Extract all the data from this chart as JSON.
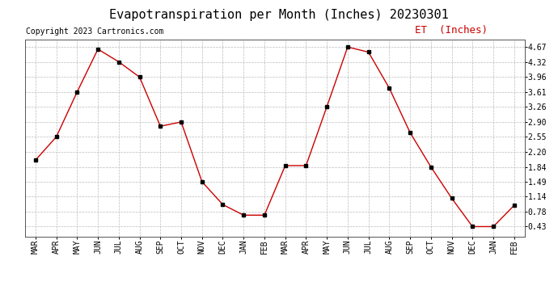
{
  "title": "Evapotranspiration per Month (Inches) 20230301",
  "copyright": "Copyright 2023 Cartronics.com",
  "legend_label": "ET  (Inches)",
  "months": [
    "MAR",
    "APR",
    "MAY",
    "JUN",
    "JUL",
    "AUG",
    "SEP",
    "OCT",
    "NOV",
    "DEC",
    "JAN",
    "FEB",
    "MAR",
    "APR",
    "MAY",
    "JUN",
    "JUL",
    "AUG",
    "SEP",
    "OCT",
    "NOV",
    "DEC",
    "JAN",
    "FEB"
  ],
  "values": [
    2.0,
    2.55,
    3.61,
    4.62,
    4.32,
    3.96,
    2.8,
    2.9,
    1.49,
    0.95,
    0.7,
    0.7,
    1.87,
    1.87,
    3.26,
    4.67,
    4.55,
    3.7,
    2.65,
    1.84,
    1.1,
    0.43,
    0.43,
    0.93
  ],
  "yticks": [
    0.43,
    0.78,
    1.14,
    1.49,
    1.84,
    2.2,
    2.55,
    2.9,
    3.26,
    3.61,
    3.96,
    4.32,
    4.67
  ],
  "line_color": "#cc0000",
  "marker_color": "#000000",
  "grid_color": "#bbbbbb",
  "background_color": "#ffffff",
  "title_fontsize": 11,
  "copyright_fontsize": 7,
  "legend_fontsize": 9,
  "tick_fontsize": 7,
  "ylim_min": 0.2,
  "ylim_max": 4.85
}
